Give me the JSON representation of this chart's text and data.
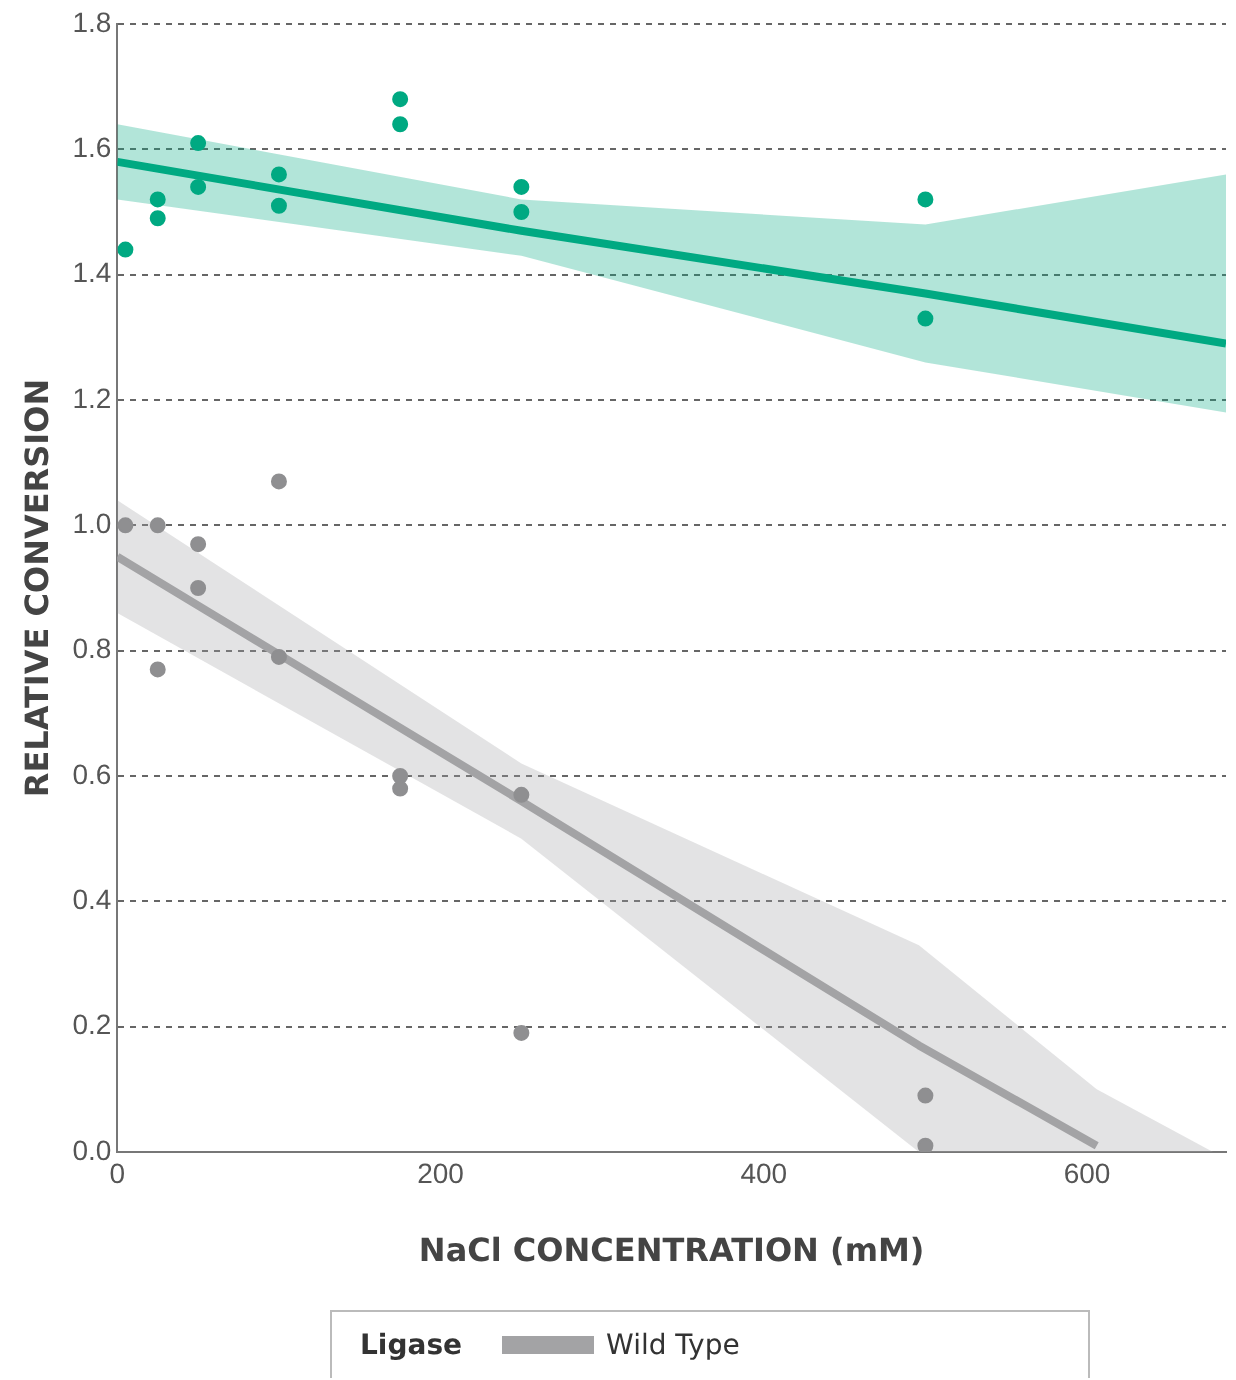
{
  "chart_data": {
    "type": "scatter",
    "xlabel": "NaCl CONCENTRATION (mM)",
    "ylabel": "RELATIVE CONVERSION",
    "legend_title": "Ligase",
    "legend": "bottom",
    "grid": "y",
    "xlim": [
      0,
      686
    ],
    "xticks": [
      0,
      200,
      400,
      600
    ],
    "ylim": [
      0,
      1.8
    ],
    "yticks": [
      {
        "value": 0,
        "label": "0.0"
      },
      {
        "value": 0.2,
        "label": "0.2"
      },
      {
        "value": 0.4,
        "label": "0.4"
      },
      {
        "value": 0.6,
        "label": "0.6"
      },
      {
        "value": 0.8,
        "label": "0.8"
      },
      {
        "value": 1,
        "label": "1.0"
      },
      {
        "value": 1.2,
        "label": "1.2"
      },
      {
        "value": 1.4,
        "label": "1.4"
      },
      {
        "value": 1.6,
        "label": "1.6"
      },
      {
        "value": 1.8,
        "label": "1.8"
      }
    ],
    "series": [
      {
        "type": "line",
        "color": "#00a982",
        "x": [
          0,
          250,
          500,
          686
        ],
        "values": [
          1.58,
          1.47,
          1.37,
          1.29
        ],
        "lower": [
          1.52,
          1.43,
          1.26,
          1.18
        ],
        "upper": [
          1.64,
          1.52,
          1.48,
          1.56
        ]
      },
      {
        "type": "line",
        "name": "Wild Type",
        "color": "#a3a3a5",
        "x": [
          0,
          250,
          496,
          606,
          678
        ],
        "values": [
          0.95,
          0.56,
          0.17,
          0.01,
          null
        ],
        "lower": [
          0.86,
          0.5,
          0,
          0,
          0
        ],
        "upper": [
          1.04,
          0.62,
          0.33,
          0.1,
          0
        ]
      },
      {
        "marker": "circle",
        "color": "#00a982",
        "x": [
          5,
          25,
          25,
          50,
          50,
          100,
          100,
          175,
          175,
          250,
          250,
          500,
          500
        ],
        "values": [
          1.44,
          1.52,
          1.49,
          1.61,
          1.54,
          1.56,
          1.51,
          1.68,
          1.64,
          1.54,
          1.5,
          1.52,
          1.33
        ]
      },
      {
        "marker": "circle",
        "color": "#8f8f91",
        "x": [
          5,
          25,
          25,
          50,
          50,
          100,
          100,
          175,
          175,
          250,
          250,
          500,
          500
        ],
        "values": [
          1.0,
          1.0,
          0.77,
          0.97,
          0.9,
          1.07,
          0.79,
          0.6,
          0.58,
          0.57,
          0.19,
          0.09,
          0.01
        ]
      }
    ]
  }
}
